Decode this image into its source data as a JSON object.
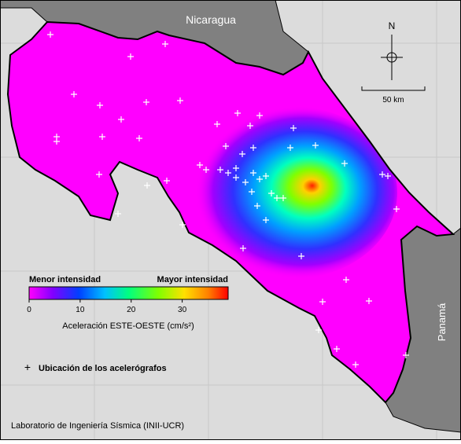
{
  "map": {
    "labels": {
      "nicaragua": "Nicaragua",
      "panama": "Panamá",
      "north": "N"
    },
    "scale_bar": "50 km",
    "colorbar": {
      "low_label": "Menor intensidad",
      "high_label": "Mayor intensidad",
      "title": "Aceleración ESTE-OESTE (cm/s²)",
      "range": [
        0,
        39
      ],
      "ticks": [
        0,
        10,
        20,
        30
      ]
    },
    "legend": "Ubicación de los acelerógrafos",
    "credit": "Laboratorio de Ingeniería Sísmica (INII-UCR)"
  }
}
